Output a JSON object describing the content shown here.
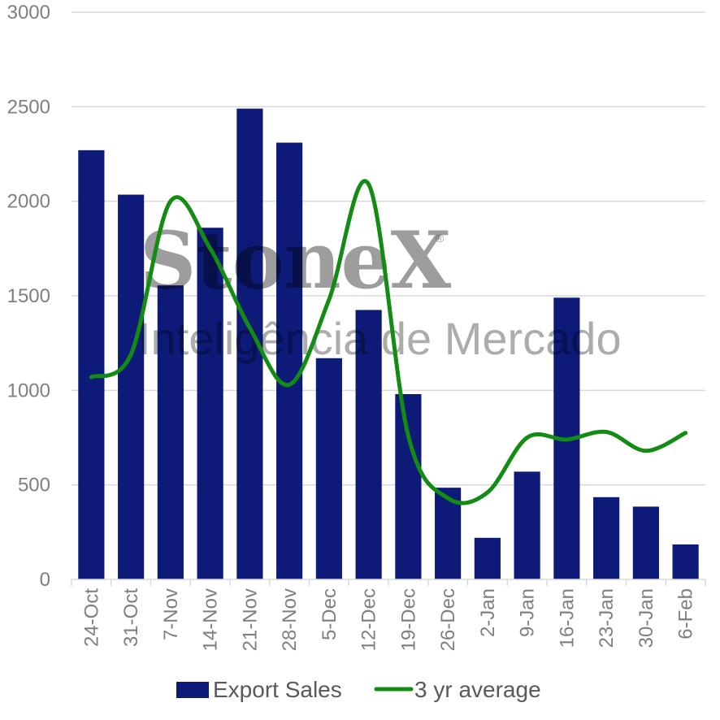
{
  "chart_data": {
    "type": "bar",
    "categories": [
      "24-Oct",
      "31-Oct",
      "7-Nov",
      "14-Nov",
      "21-Nov",
      "28-Nov",
      "5-Dec",
      "12-Dec",
      "19-Dec",
      "26-Dec",
      "2-Jan",
      "9-Jan",
      "16-Jan",
      "23-Jan",
      "30-Jan",
      "6-Feb"
    ],
    "series": [
      {
        "name": "Export Sales",
        "type": "bar",
        "color": "#0d1a78",
        "values": [
          2270,
          2035,
          1555,
          1860,
          2490,
          2310,
          1170,
          1425,
          980,
          485,
          220,
          570,
          1490,
          435,
          385,
          185
        ]
      },
      {
        "name": "3 yr average",
        "type": "line",
        "smooth": true,
        "color": "#138c13",
        "values": [
          1070,
          1190,
          2000,
          1750,
          1330,
          1030,
          1480,
          2090,
          760,
          430,
          460,
          750,
          740,
          780,
          680,
          775
        ]
      }
    ],
    "y_ticks": [
      "0",
      "500",
      "1000",
      "1500",
      "2000",
      "2500",
      "3000"
    ],
    "ylim": [
      0,
      3000
    ],
    "grid": true,
    "legend": "bottom",
    "watermark": {
      "brand": "StoneX",
      "registered": "®",
      "tagline": "Inteligência de Mercado"
    }
  }
}
